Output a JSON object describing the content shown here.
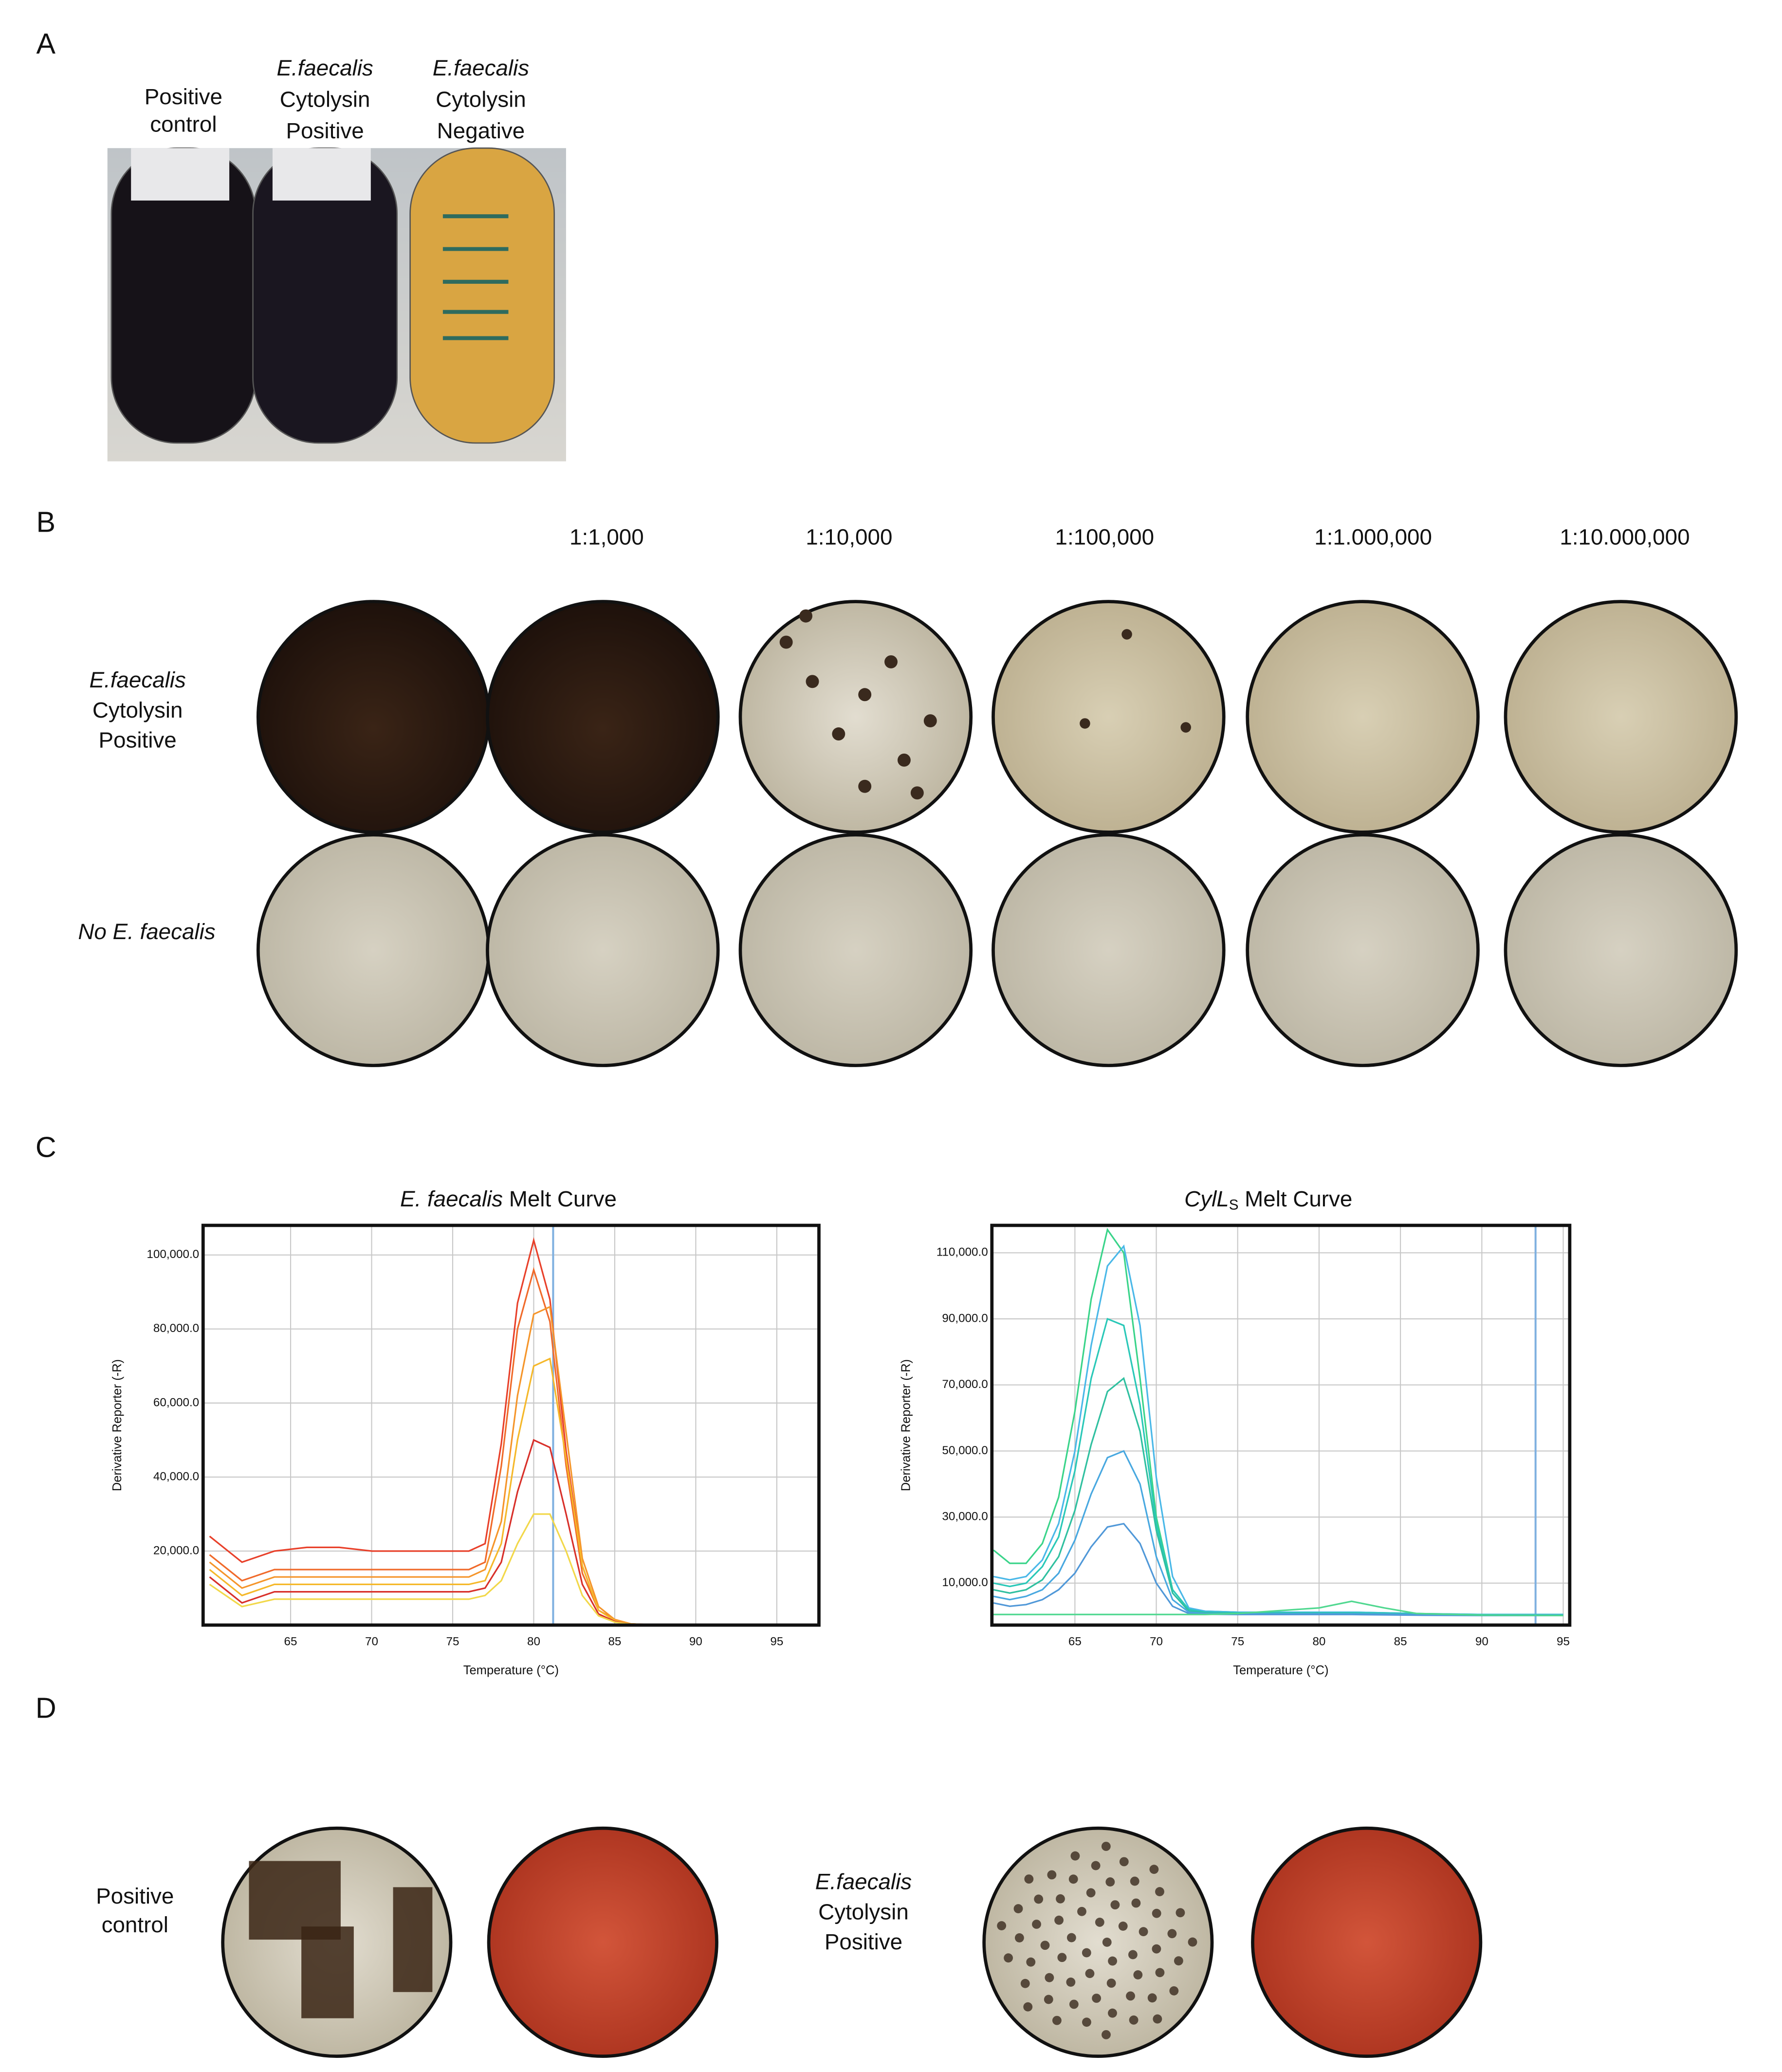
{
  "panel_a": {
    "label": "A",
    "columns": [
      {
        "lines": [
          "Positive",
          "control"
        ]
      },
      {
        "species": "E.faecalis",
        "lines": [
          "Cytolysin",
          "Positive"
        ]
      },
      {
        "species": "E.faecalis",
        "lines": [
          "Cytolysin",
          "Negative"
        ]
      }
    ]
  },
  "panel_b": {
    "label": "B",
    "dilutions": [
      "1:1,000",
      "1:10,000",
      "1:100,000",
      "1:1.000,000",
      "1:10.000,000"
    ],
    "rows": [
      {
        "species": "E.faecalis",
        "lines": [
          "Cytolysin",
          "Positive"
        ]
      },
      {
        "label": "No E. faecalis"
      }
    ]
  },
  "panel_c": {
    "label": "C"
  },
  "chart_data": [
    {
      "type": "line",
      "title": {
        "italic": "E. faecalis",
        "text": "Melt Curve"
      },
      "x_label": "Temperature (°C)",
      "y_label": "Derivative Reporter (-R)",
      "x": [
        60,
        62,
        64,
        66,
        68,
        70,
        72,
        74,
        76,
        77,
        78,
        79,
        80,
        81,
        82,
        83,
        84,
        85,
        86,
        88,
        90,
        95
      ],
      "series": [
        {
          "color": "#e8402a",
          "values": [
            24000,
            17000,
            20000,
            21000,
            21000,
            20000,
            20000,
            20000,
            20000,
            22000,
            49000,
            87000,
            104000,
            88000,
            47000,
            16000,
            4000,
            1500,
            300,
            0,
            0,
            0
          ]
        },
        {
          "color": "#f06a2a",
          "values": [
            19000,
            12000,
            15000,
            15000,
            15000,
            15000,
            15000,
            15000,
            15000,
            17000,
            43000,
            80000,
            96000,
            82000,
            43000,
            14000,
            4000,
            1500,
            300,
            0,
            0,
            0
          ]
        },
        {
          "color": "#f5952a",
          "values": [
            17000,
            10000,
            13000,
            13000,
            13000,
            13000,
            13000,
            13000,
            13000,
            15000,
            28000,
            62000,
            84000,
            86000,
            52000,
            18000,
            5000,
            1500,
            300,
            0,
            0,
            0
          ]
        },
        {
          "color": "#f5b82a",
          "values": [
            15000,
            8000,
            11000,
            11000,
            11000,
            11000,
            11000,
            11000,
            11000,
            12000,
            22000,
            50000,
            70000,
            72000,
            45000,
            16000,
            4000,
            1200,
            300,
            0,
            0,
            0
          ]
        },
        {
          "color": "#d8302a",
          "values": [
            13000,
            6000,
            9000,
            9000,
            9000,
            9000,
            9000,
            9000,
            9000,
            10000,
            17000,
            36000,
            50000,
            48000,
            30000,
            11000,
            3000,
            1000,
            200,
            0,
            0,
            0
          ]
        },
        {
          "color": "#f2d84a",
          "values": [
            11000,
            5000,
            7000,
            7000,
            7000,
            7000,
            7000,
            7000,
            7000,
            8000,
            12000,
            22000,
            30000,
            30000,
            20000,
            8000,
            2500,
            800,
            200,
            0,
            0,
            0
          ]
        }
      ],
      "xlim": [
        59.6,
        97.6
      ],
      "ylim": [
        0,
        108000
      ],
      "xticks": [
        65,
        70,
        75,
        80,
        85,
        90,
        95
      ],
      "yticks": [
        {
          "value": 20000,
          "label": "20,000.0"
        },
        {
          "value": 40000,
          "label": "40,000.0"
        },
        {
          "value": 60000,
          "label": "60,000.0"
        },
        {
          "value": 80000,
          "label": "80,000.0"
        },
        {
          "value": 100000,
          "label": "100,000.0"
        }
      ],
      "grid": true,
      "marker_line": {
        "x": 81.2,
        "color": "#7fb0e0"
      }
    },
    {
      "type": "line",
      "title": {
        "italic": "CylL",
        "subscript": "S",
        "text": "Melt Curve"
      },
      "x_label": "Temperature (°C)",
      "y_label": "Derivative Reporter (-R)",
      "x": [
        60,
        61,
        62,
        63,
        64,
        65,
        66,
        67,
        68,
        69,
        70,
        71,
        72,
        73,
        75,
        80,
        82,
        84,
        86,
        90,
        95
      ],
      "series": [
        {
          "color": "#3ad48a",
          "values": [
            20000,
            16000,
            16000,
            22000,
            36000,
            62000,
            96000,
            117000,
            110000,
            72000,
            30000,
            8000,
            2000,
            1500,
            1200,
            1200,
            1200,
            1000,
            800,
            500,
            500
          ]
        },
        {
          "color": "#4ab8e8",
          "values": [
            12000,
            11000,
            12000,
            17000,
            28000,
            50000,
            82000,
            106000,
            112000,
            88000,
            42000,
            12000,
            2500,
            1500,
            1200,
            1200,
            1200,
            1000,
            800,
            500,
            500
          ]
        },
        {
          "color": "#2ac8b8",
          "values": [
            10000,
            9000,
            10000,
            15000,
            24000,
            44000,
            72000,
            90000,
            88000,
            64000,
            28000,
            8000,
            2000,
            1200,
            1000,
            1000,
            1000,
            900,
            700,
            400,
            400
          ]
        },
        {
          "color": "#30c0a0",
          "values": [
            8000,
            7000,
            8000,
            11000,
            18000,
            32000,
            52000,
            68000,
            72000,
            56000,
            26000,
            7000,
            1500,
            1000,
            800,
            800,
            800,
            700,
            600,
            300,
            300
          ]
        },
        {
          "color": "#48a8e0",
          "values": [
            6000,
            5000,
            6000,
            8000,
            13000,
            23000,
            37000,
            48000,
            50000,
            40000,
            18000,
            5000,
            1200,
            800,
            700,
            700,
            700,
            600,
            500,
            300,
            300
          ]
        },
        {
          "color": "#5098d8",
          "values": [
            4000,
            3000,
            3500,
            5000,
            8000,
            13000,
            21000,
            27000,
            28000,
            22000,
            10000,
            3000,
            800,
            600,
            500,
            500,
            500,
            400,
            300,
            200,
            200
          ]
        },
        {
          "color": "#50d890",
          "values": [
            500,
            500,
            500,
            500,
            500,
            500,
            500,
            500,
            500,
            500,
            500,
            500,
            500,
            500,
            800,
            2500,
            4500,
            2500,
            800,
            300,
            200
          ]
        }
      ],
      "xlim": [
        59.9,
        95.4
      ],
      "ylim": [
        -2700,
        118300
      ],
      "xticks": [
        65,
        70,
        75,
        80,
        85,
        90,
        95
      ],
      "yticks": [
        {
          "value": 10000,
          "label": "10,000.0"
        },
        {
          "value": 30000,
          "label": "30,000.0"
        },
        {
          "value": 50000,
          "label": "50,000.0"
        },
        {
          "value": 70000,
          "label": "70,000.0"
        },
        {
          "value": 90000,
          "label": "90,000.0"
        },
        {
          "value": 110000,
          "label": "110,000.0"
        }
      ],
      "grid": true,
      "marker_line": {
        "x": 93.3,
        "color": "#7fb0e0"
      }
    }
  ],
  "panel_d": {
    "label": "D",
    "groups": [
      {
        "lines": [
          "Positive",
          "control"
        ]
      },
      {
        "species": "E.faecalis",
        "lines": [
          "Cytolysin",
          "Positive"
        ]
      }
    ]
  }
}
